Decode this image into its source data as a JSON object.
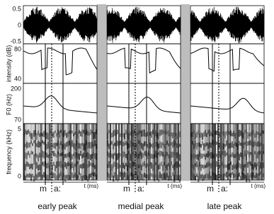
{
  "axes": {
    "waveform": {
      "ticks": [
        "0.5",
        "0",
        "-0.5"
      ]
    },
    "intensity": {
      "label": "intensity (dB)",
      "ticks": [
        "80",
        "40"
      ]
    },
    "f0": {
      "label": "F0 (Hz)",
      "ticks": [
        "200",
        "70"
      ]
    },
    "frequency": {
      "label": "frequency (kHz)",
      "ticks": [
        "5",
        "0"
      ]
    }
  },
  "panels": [
    {
      "title": "early peak",
      "segments": [
        "m",
        "a:"
      ],
      "time_label": "t (ms)"
    },
    {
      "title": "medial peak",
      "segments": [
        "m",
        "a:"
      ],
      "time_label": "t (ms)"
    },
    {
      "title": "late peak",
      "segments": [
        "m",
        "a:"
      ],
      "time_label": "t (ms)"
    }
  ]
}
